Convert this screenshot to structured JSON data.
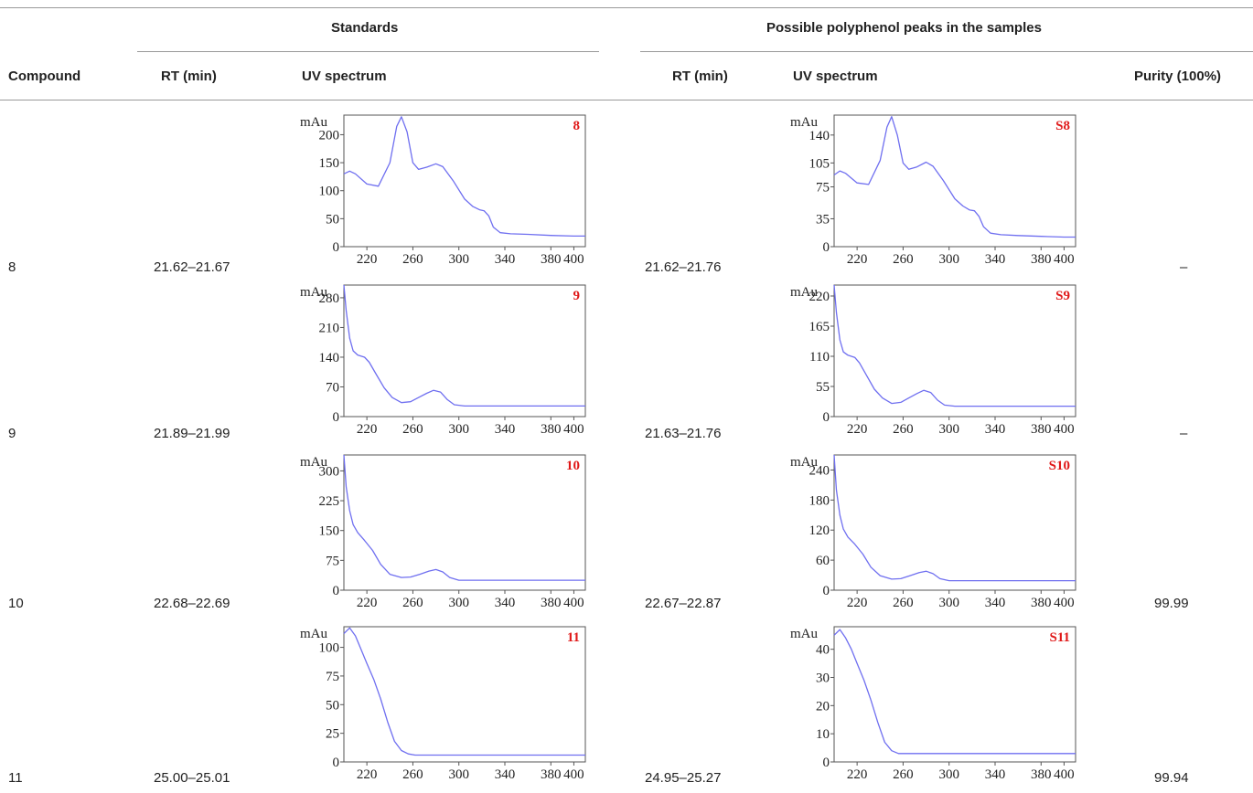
{
  "table": {
    "group_headers": {
      "standards": "Standards",
      "samples": "Possible polyphenol peaks in the samples"
    },
    "column_headers": {
      "compound": "Compound",
      "std_rt": "RT (min)",
      "std_uv": "UV spectrum",
      "sample_rt": "RT (min)",
      "sample_uv": "UV spectrum",
      "purity": "Purity (100%)"
    },
    "rows": [
      {
        "compound": "8",
        "std_rt": "21.62–21.67",
        "sample_rt": "21.62–21.76",
        "purity": "–"
      },
      {
        "compound": "9",
        "std_rt": "21.89–21.99",
        "sample_rt": "21.63–21.76",
        "purity": "–"
      },
      {
        "compound": "10",
        "std_rt": "22.68–22.69",
        "sample_rt": "22.67–22.87",
        "purity": "99.99"
      },
      {
        "compound": "11",
        "std_rt": "25.00–25.01",
        "sample_rt": "24.95–25.27",
        "purity": "99.94"
      }
    ]
  },
  "colors": {
    "line": "#6f6ff0",
    "tag": "#e01818",
    "rule": "#999999"
  },
  "chart_data": [
    {
      "type": "line",
      "id": "std-8",
      "tag": "8",
      "ylabel": "mAu",
      "xlim": [
        200,
        410
      ],
      "ylim": [
        0,
        235
      ],
      "xticks": [
        220,
        260,
        300,
        340,
        380,
        400
      ],
      "yticks": [
        0,
        50,
        100,
        150,
        200
      ],
      "x": [
        200,
        205,
        210,
        220,
        230,
        240,
        246,
        250,
        255,
        260,
        265,
        272,
        280,
        286,
        295,
        305,
        312,
        318,
        322,
        326,
        330,
        336,
        345,
        360,
        380,
        400,
        410
      ],
      "y": [
        130,
        135,
        130,
        112,
        108,
        150,
        215,
        232,
        205,
        150,
        138,
        142,
        148,
        143,
        118,
        85,
        72,
        66,
        64,
        55,
        35,
        25,
        23,
        22,
        20,
        19,
        19
      ]
    },
    {
      "type": "line",
      "id": "smp-8",
      "tag": "S8",
      "ylabel": "mAu",
      "xlim": [
        200,
        410
      ],
      "ylim": [
        0,
        165
      ],
      "xticks": [
        220,
        260,
        300,
        340,
        380,
        400
      ],
      "yticks": [
        0,
        35,
        75,
        105,
        140
      ],
      "x": [
        200,
        205,
        210,
        220,
        230,
        240,
        246,
        250,
        255,
        260,
        265,
        272,
        280,
        286,
        295,
        305,
        312,
        318,
        322,
        326,
        330,
        336,
        345,
        360,
        380,
        400,
        410
      ],
      "y": [
        90,
        95,
        92,
        80,
        78,
        108,
        150,
        163,
        140,
        105,
        97,
        100,
        106,
        101,
        83,
        60,
        51,
        46,
        45,
        38,
        25,
        17,
        15,
        14,
        13,
        12,
        12
      ]
    },
    {
      "type": "line",
      "id": "std-9",
      "tag": "9",
      "ylabel": "mAu",
      "xlim": [
        200,
        410
      ],
      "ylim": [
        0,
        310
      ],
      "xticks": [
        220,
        260,
        300,
        340,
        380,
        400
      ],
      "yticks": [
        0,
        70,
        140,
        210,
        280
      ],
      "x": [
        200,
        202,
        205,
        208,
        212,
        218,
        222,
        228,
        235,
        242,
        250,
        258,
        265,
        272,
        278,
        284,
        290,
        296,
        305,
        320,
        350,
        400,
        410
      ],
      "y": [
        310,
        250,
        185,
        155,
        145,
        140,
        128,
        100,
        68,
        45,
        33,
        35,
        45,
        55,
        62,
        58,
        40,
        28,
        25,
        25,
        25,
        25,
        25
      ]
    },
    {
      "type": "line",
      "id": "smp-9",
      "tag": "S9",
      "ylabel": "mAu",
      "xlim": [
        200,
        410
      ],
      "ylim": [
        0,
        240
      ],
      "xticks": [
        220,
        260,
        300,
        340,
        380,
        400
      ],
      "yticks": [
        0,
        55,
        110,
        165,
        220
      ],
      "x": [
        200,
        202,
        205,
        208,
        212,
        218,
        222,
        228,
        235,
        242,
        250,
        258,
        265,
        272,
        278,
        284,
        290,
        296,
        305,
        320,
        350,
        400,
        410
      ],
      "y": [
        240,
        190,
        140,
        118,
        112,
        108,
        98,
        76,
        50,
        34,
        24,
        26,
        34,
        42,
        48,
        44,
        30,
        21,
        19,
        19,
        19,
        19,
        19
      ]
    },
    {
      "type": "line",
      "id": "std-10",
      "tag": "10",
      "ylabel": "mAu",
      "xlim": [
        200,
        410
      ],
      "ylim": [
        0,
        340
      ],
      "xticks": [
        220,
        260,
        300,
        340,
        380,
        400
      ],
      "yticks": [
        0,
        75,
        150,
        225,
        300
      ],
      "x": [
        200,
        202,
        205,
        208,
        212,
        218,
        225,
        232,
        240,
        250,
        258,
        266,
        274,
        280,
        286,
        292,
        300,
        320,
        350,
        400,
        410
      ],
      "y": [
        340,
        260,
        200,
        165,
        145,
        125,
        100,
        65,
        40,
        32,
        33,
        40,
        48,
        52,
        46,
        32,
        25,
        25,
        25,
        25,
        25
      ]
    },
    {
      "type": "line",
      "id": "smp-10",
      "tag": "S10",
      "ylabel": "mAu",
      "xlim": [
        200,
        410
      ],
      "ylim": [
        0,
        270
      ],
      "xticks": [
        220,
        260,
        300,
        340,
        380,
        400
      ],
      "yticks": [
        0,
        60,
        120,
        180,
        240
      ],
      "x": [
        200,
        202,
        205,
        208,
        212,
        218,
        225,
        232,
        240,
        250,
        258,
        266,
        274,
        280,
        286,
        292,
        300,
        320,
        350,
        400,
        410
      ],
      "y": [
        270,
        200,
        150,
        122,
        106,
        92,
        72,
        46,
        29,
        22,
        23,
        29,
        35,
        38,
        33,
        23,
        19,
        19,
        19,
        19,
        19
      ]
    },
    {
      "type": "line",
      "id": "std-11",
      "tag": "11",
      "ylabel": "mAu",
      "xlim": [
        200,
        410
      ],
      "ylim": [
        0,
        118
      ],
      "xticks": [
        220,
        260,
        300,
        340,
        380,
        400
      ],
      "yticks": [
        0,
        25,
        50,
        75,
        100
      ],
      "x": [
        200,
        205,
        210,
        215,
        220,
        226,
        232,
        238,
        244,
        250,
        256,
        262,
        270,
        290,
        330,
        400,
        410
      ],
      "y": [
        112,
        117,
        110,
        98,
        86,
        72,
        55,
        35,
        18,
        10,
        7,
        6,
        6,
        6,
        6,
        6,
        6
      ]
    },
    {
      "type": "line",
      "id": "smp-11",
      "tag": "S11",
      "ylabel": "mAu",
      "xlim": [
        200,
        410
      ],
      "ylim": [
        0,
        48
      ],
      "xticks": [
        220,
        260,
        300,
        340,
        380,
        400
      ],
      "yticks": [
        0,
        10,
        20,
        30,
        40
      ],
      "x": [
        200,
        205,
        210,
        215,
        220,
        226,
        232,
        238,
        244,
        250,
        256,
        262,
        270,
        290,
        330,
        400,
        410
      ],
      "y": [
        45,
        47,
        44,
        40,
        35,
        29,
        22,
        14,
        7,
        4,
        3,
        3,
        3,
        3,
        3,
        3,
        3
      ]
    }
  ]
}
